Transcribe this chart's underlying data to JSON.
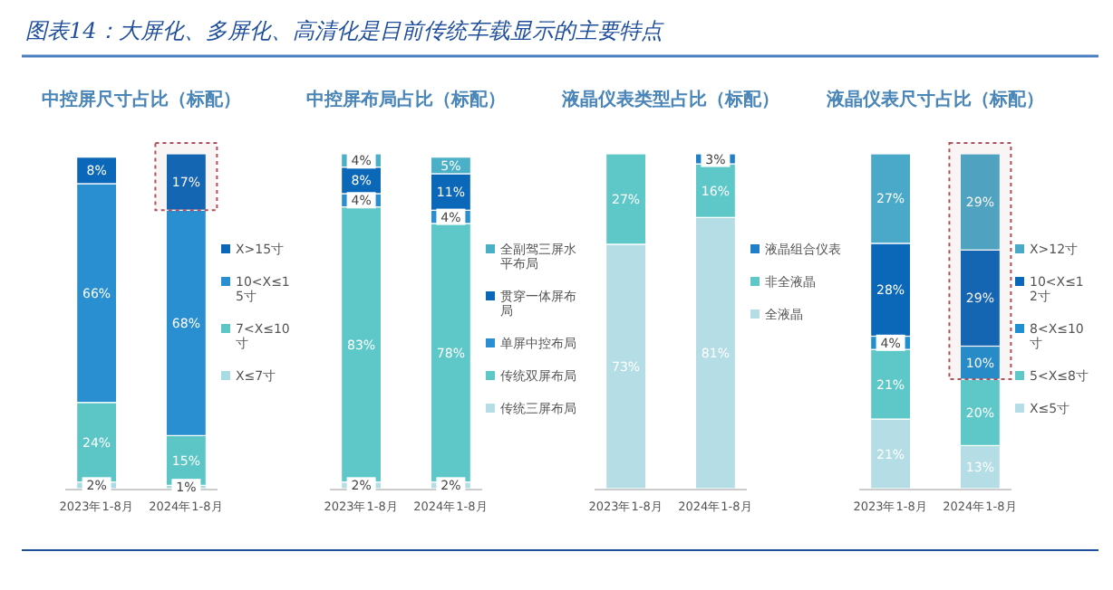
{
  "chart_data": [
    {
      "type": "bar",
      "stacked": true,
      "title": "中控屏尺寸占比（标配）",
      "annotations": [
        "图表14：大屏化、多屏化、高清化是目前传统车载显示的主要特点"
      ],
      "categories": [
        "2023年1-8月",
        "2024年1-8月"
      ],
      "legend": "right",
      "series": [
        {
          "name": "X≤7寸",
          "color": "#a8dbe3",
          "values": [
            2,
            1
          ],
          "value_labels": [
            "2%",
            "1%"
          ]
        },
        {
          "name": "7<X≤10寸",
          "color": "#5cc6c6",
          "values": [
            24,
            15
          ],
          "value_labels": [
            "24%",
            "15%"
          ]
        },
        {
          "name": "10<X≤15寸",
          "color": "#2a8fd0",
          "values": [
            66,
            68
          ],
          "value_labels": [
            "66%",
            "68%"
          ]
        },
        {
          "name": "X>15寸",
          "color": "#0b67b8",
          "values": [
            8,
            17
          ],
          "value_labels": [
            "8%",
            "17%"
          ]
        }
      ],
      "bands": [
        {
          "axis": "y",
          "from": 84,
          "to": 101,
          "color": "#b0505a"
        }
      ]
    },
    {
      "type": "bar",
      "stacked": true,
      "title": "中控屏布局占比（标配）",
      "categories": [
        "2023年1-8月",
        "2024年1-8月"
      ],
      "legend": "right",
      "series": [
        {
          "name": "传统三屏布局",
          "color": "#b4dde6",
          "values": [
            2,
            2
          ],
          "value_labels": [
            "2%",
            "2%"
          ]
        },
        {
          "name": "传统双屏布局",
          "color": "#5ec8c8",
          "values": [
            83,
            78
          ],
          "value_labels": [
            "83%",
            "78%"
          ]
        },
        {
          "name": "单屏中控布局",
          "color": "#2a8fd0",
          "values": [
            4,
            4
          ],
          "value_labels": [
            "4%",
            "4%"
          ]
        },
        {
          "name": "贯穿一体屏布局",
          "color": "#0b67b8",
          "values": [
            8,
            11
          ],
          "value_labels": [
            "8%",
            "11%"
          ]
        },
        {
          "name": "全副驾三屏水平布局",
          "color": "#4ab0c8",
          "values": [
            4,
            5
          ],
          "value_labels": [
            "4%",
            "5%"
          ]
        }
      ]
    },
    {
      "type": "bar",
      "stacked": true,
      "title": "液晶仪表类型占比（标配）",
      "categories": [
        "2023年1-8月",
        "2024年1-8月"
      ],
      "legend": "right",
      "series": [
        {
          "name": "全液晶",
          "color": "#b4dde6",
          "values": [
            73,
            81
          ],
          "value_labels": [
            "73%",
            "81%"
          ]
        },
        {
          "name": "非全液晶",
          "color": "#5ec8c8",
          "values": [
            27,
            16
          ],
          "value_labels": [
            "27%",
            "16%"
          ]
        },
        {
          "name": "液晶组合仪表",
          "color": "#1f7fc8",
          "values": [
            null,
            3
          ],
          "value_labels": [
            null,
            "3%"
          ]
        }
      ]
    },
    {
      "type": "bar",
      "stacked": true,
      "title": "液晶仪表尺寸占比（标配）",
      "categories": [
        "2023年1-8月",
        "2024年1-8月"
      ],
      "legend": "right",
      "series": [
        {
          "name": "X≤5寸",
          "color": "#b4dde6",
          "values": [
            21,
            13
          ],
          "value_labels": [
            "21%",
            "13%"
          ]
        },
        {
          "name": "5<X≤8寸",
          "color": "#5ec8c8",
          "values": [
            21,
            20
          ],
          "value_labels": [
            "21%",
            "20%"
          ]
        },
        {
          "name": "8<X≤10寸",
          "color": "#1f8fd0",
          "values": [
            4,
            10
          ],
          "value_labels": [
            "4%",
            "10%"
          ]
        },
        {
          "name": "10<X≤12寸",
          "color": "#0b67b8",
          "values": [
            28,
            29
          ],
          "value_labels": [
            "28%",
            "29%"
          ]
        },
        {
          "name": "X>12寸",
          "color": "#4aa8c8",
          "values": [
            27,
            29
          ],
          "value_labels": [
            "27%",
            "29%"
          ]
        }
      ],
      "bands": [
        {
          "axis": "y",
          "from": 33,
          "to": 101,
          "color": "#b0505a"
        }
      ]
    }
  ]
}
